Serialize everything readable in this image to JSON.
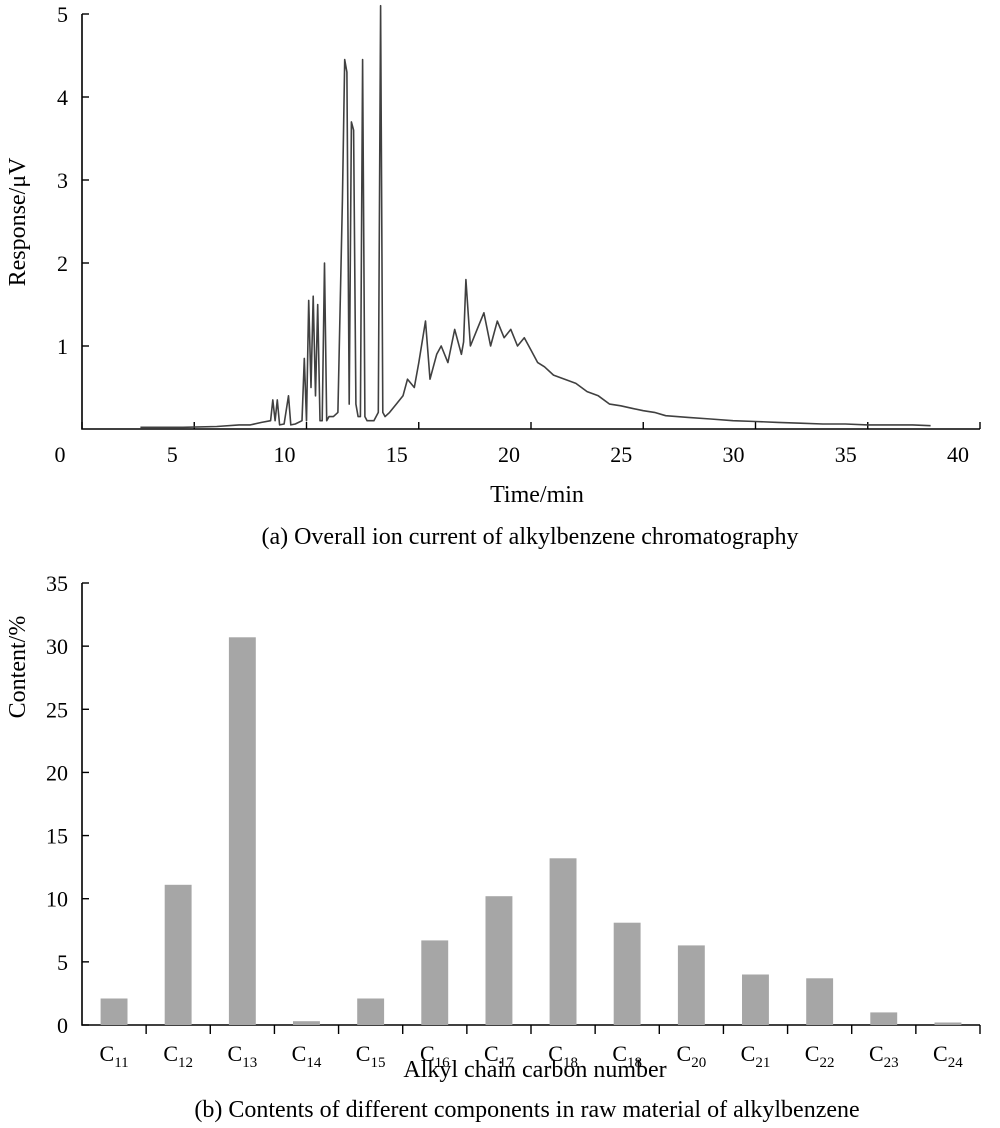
{
  "chart_data": [
    {
      "type": "line",
      "caption": "(a) Overall ion current of alkylbenzene chromatography",
      "xlabel": "Time/min",
      "ylabel": "Response/μV",
      "xlim": [
        0,
        40
      ],
      "ylim": [
        0,
        5
      ],
      "xticks": [
        0,
        5,
        10,
        15,
        20,
        25,
        30,
        35,
        40
      ],
      "yticks": [
        1,
        2,
        3,
        4,
        5
      ],
      "color": "#404040",
      "series": [
        {
          "x": [
            2.6,
            4.5,
            6.0,
            7.0,
            7.5,
            8.0,
            8.4,
            8.5,
            8.6,
            8.7,
            8.8,
            9.0,
            9.2,
            9.3,
            9.5,
            9.8,
            9.9,
            10.0,
            10.1,
            10.2,
            10.3,
            10.4,
            10.5,
            10.6,
            10.7,
            10.8,
            10.9,
            11.0,
            11.2,
            11.4,
            11.6,
            11.7,
            11.8,
            11.9,
            12.0,
            12.1,
            12.2,
            12.3,
            12.4,
            12.5,
            12.6,
            12.7,
            12.8,
            13.0,
            13.2,
            13.3,
            13.4,
            13.5,
            13.7,
            14.0,
            14.3,
            14.5,
            14.8,
            15.0,
            15.3,
            15.5,
            15.8,
            16.0,
            16.3,
            16.6,
            16.9,
            17.0,
            17.1,
            17.3,
            17.6,
            17.9,
            18.2,
            18.5,
            18.8,
            19.1,
            19.4,
            19.7,
            20.0,
            20.3,
            20.6,
            21.0,
            21.5,
            22.0,
            22.5,
            23.0,
            23.5,
            24.0,
            24.5,
            25.0,
            25.5,
            26.0,
            27.0,
            28.0,
            29.0,
            30.0,
            31.0,
            32.0,
            33.0,
            34.0,
            35.0,
            36.0,
            37.0,
            37.8
          ],
          "y": [
            0.02,
            0.02,
            0.03,
            0.05,
            0.05,
            0.08,
            0.1,
            0.35,
            0.1,
            0.35,
            0.05,
            0.06,
            0.4,
            0.05,
            0.06,
            0.1,
            0.85,
            0.1,
            1.55,
            0.5,
            1.6,
            0.4,
            1.5,
            0.1,
            0.1,
            2.0,
            0.1,
            0.15,
            0.15,
            0.2,
            2.75,
            4.45,
            4.3,
            0.3,
            3.7,
            3.6,
            0.3,
            0.15,
            0.15,
            4.45,
            0.15,
            0.1,
            0.1,
            0.1,
            0.2,
            5.1,
            0.2,
            0.15,
            0.2,
            0.3,
            0.4,
            0.6,
            0.5,
            0.8,
            1.3,
            0.6,
            0.9,
            1.0,
            0.8,
            1.2,
            0.9,
            1.05,
            1.8,
            1.0,
            1.2,
            1.4,
            1.0,
            1.3,
            1.1,
            1.2,
            1.0,
            1.1,
            0.95,
            0.8,
            0.75,
            0.65,
            0.6,
            0.55,
            0.45,
            0.4,
            0.3,
            0.28,
            0.25,
            0.22,
            0.2,
            0.16,
            0.14,
            0.12,
            0.1,
            0.09,
            0.08,
            0.07,
            0.06,
            0.06,
            0.05,
            0.05,
            0.05,
            0.04
          ]
        }
      ]
    },
    {
      "type": "bar",
      "caption": "(b)  Contents of different components in raw material of alkylbenzene",
      "xlabel": "Alkyl chain carbon number",
      "ylabel": "Content/%",
      "ylim": [
        0,
        35
      ],
      "yticks": [
        0,
        5,
        10,
        15,
        20,
        25,
        30,
        35
      ],
      "color": "#a6a6a6",
      "categories": [
        {
          "base": "C",
          "sub": "11"
        },
        {
          "base": "C",
          "sub": "12"
        },
        {
          "base": "C",
          "sub": "13"
        },
        {
          "base": "C",
          "sub": "14"
        },
        {
          "base": "C",
          "sub": "15"
        },
        {
          "base": "C",
          "sub": "16"
        },
        {
          "base": "C",
          "sub": "17"
        },
        {
          "base": "C",
          "sub": "18"
        },
        {
          "base": "C",
          "sub": "18"
        },
        {
          "base": "C",
          "sub": "20"
        },
        {
          "base": "C",
          "sub": "21"
        },
        {
          "base": "C",
          "sub": "22"
        },
        {
          "base": "C",
          "sub": "23"
        },
        {
          "base": "C",
          "sub": "24"
        }
      ],
      "values": [
        2.1,
        11.1,
        30.7,
        0.3,
        2.1,
        6.7,
        10.2,
        13.2,
        8.1,
        6.3,
        4.0,
        3.7,
        1.0,
        0.2
      ]
    }
  ]
}
